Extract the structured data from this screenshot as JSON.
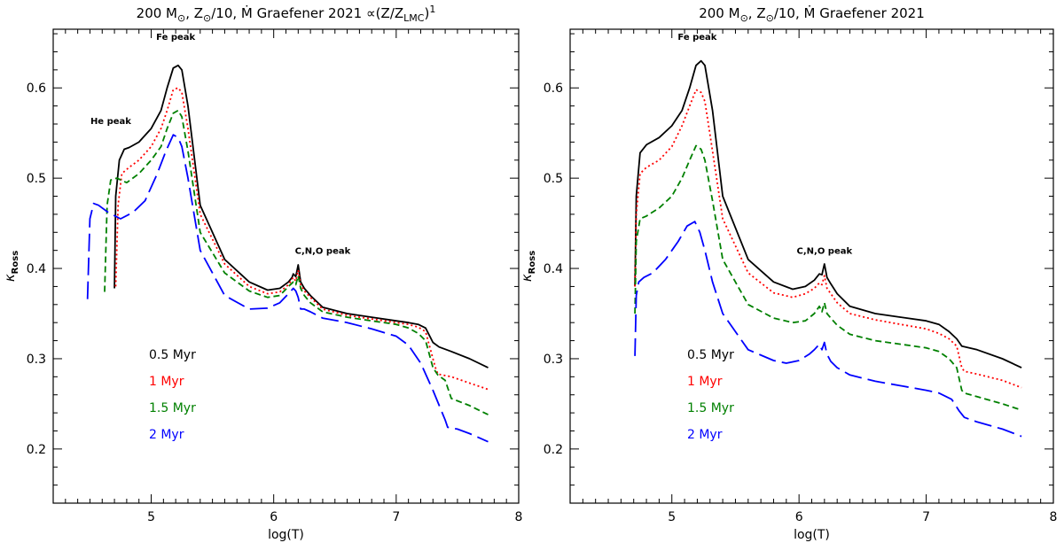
{
  "colors": {
    "black": "#000000",
    "red": "#ff0000",
    "green": "#008000",
    "blue": "#0000ff"
  },
  "chart_data": [
    {
      "type": "line",
      "title": {
        "main": "200 M",
        "sun1": "⊙",
        "mid": ", Z",
        "sun2": "⊙",
        "tail": "/10, Ṁ Graefener 2021 ∝(Z/Z",
        "sub": "LMC",
        "close": ")",
        "sup": "1"
      },
      "xlabel": "log(T)",
      "ylabel": {
        "symbol": "κ",
        "sub": "Ross"
      },
      "xlim": [
        4.2,
        8.0
      ],
      "ylim": [
        0.14,
        0.665
      ],
      "xticks": [
        5,
        6,
        7,
        8
      ],
      "yticks": [
        0.2,
        0.3,
        0.4,
        0.5,
        0.6
      ],
      "annotations": [
        {
          "text": "Fe peak",
          "x": 5.2,
          "y": 0.653
        },
        {
          "text": "He peak",
          "x": 4.67,
          "y": 0.56
        },
        {
          "text": "C,N,O peak",
          "x": 6.4,
          "y": 0.416
        }
      ],
      "legend_position": "bottom-left",
      "series": [
        {
          "name": "0.5 Myr",
          "color": "black",
          "dash": "solid",
          "x": [
            4.7,
            4.71,
            4.74,
            4.78,
            4.82,
            4.9,
            5.0,
            5.08,
            5.13,
            5.18,
            5.22,
            5.25,
            5.3,
            5.4,
            5.6,
            5.8,
            5.95,
            6.05,
            6.12,
            6.15,
            6.16,
            6.18,
            6.2,
            6.22,
            6.25,
            6.3,
            6.4,
            6.6,
            6.8,
            7.0,
            7.1,
            7.18,
            7.24,
            7.3,
            7.35,
            7.45,
            7.6,
            7.75
          ],
          "y": [
            0.378,
            0.48,
            0.52,
            0.532,
            0.534,
            0.54,
            0.555,
            0.575,
            0.6,
            0.622,
            0.625,
            0.62,
            0.58,
            0.47,
            0.41,
            0.385,
            0.376,
            0.378,
            0.385,
            0.39,
            0.394,
            0.391,
            0.404,
            0.385,
            0.378,
            0.37,
            0.357,
            0.35,
            0.346,
            0.342,
            0.34,
            0.338,
            0.334,
            0.318,
            0.313,
            0.308,
            0.3,
            0.29
          ]
        },
        {
          "name": "1 Myr",
          "color": "red",
          "dash": "dotted",
          "x": [
            4.71,
            4.73,
            4.76,
            4.82,
            4.9,
            5.0,
            5.08,
            5.13,
            5.18,
            5.22,
            5.25,
            5.3,
            5.4,
            5.6,
            5.8,
            5.95,
            6.05,
            6.12,
            6.16,
            6.18,
            6.2,
            6.22,
            6.25,
            6.3,
            6.4,
            6.6,
            6.8,
            7.0,
            7.1,
            7.18,
            7.24,
            7.3,
            7.32,
            7.34,
            7.45,
            7.6,
            7.75
          ],
          "y": [
            0.38,
            0.47,
            0.505,
            0.512,
            0.52,
            0.535,
            0.555,
            0.575,
            0.598,
            0.6,
            0.595,
            0.555,
            0.46,
            0.405,
            0.38,
            0.372,
            0.374,
            0.382,
            0.39,
            0.386,
            0.398,
            0.382,
            0.375,
            0.368,
            0.355,
            0.348,
            0.344,
            0.34,
            0.338,
            0.335,
            0.33,
            0.3,
            0.29,
            0.283,
            0.28,
            0.273,
            0.266
          ]
        },
        {
          "name": "1.5 Myr",
          "color": "green",
          "dash": "dashed",
          "x": [
            4.62,
            4.64,
            4.67,
            4.72,
            4.8,
            4.9,
            5.0,
            5.08,
            5.13,
            5.18,
            5.22,
            5.25,
            5.3,
            5.4,
            5.6,
            5.8,
            5.95,
            6.05,
            6.12,
            6.16,
            6.18,
            6.2,
            6.22,
            6.25,
            6.3,
            6.4,
            6.6,
            6.8,
            7.0,
            7.1,
            7.18,
            7.24,
            7.3,
            7.34,
            7.4,
            7.45,
            7.6,
            7.75
          ],
          "y": [
            0.374,
            0.47,
            0.498,
            0.5,
            0.495,
            0.505,
            0.52,
            0.535,
            0.555,
            0.572,
            0.575,
            0.568,
            0.53,
            0.44,
            0.395,
            0.375,
            0.368,
            0.37,
            0.38,
            0.385,
            0.382,
            0.392,
            0.378,
            0.37,
            0.362,
            0.352,
            0.346,
            0.342,
            0.338,
            0.334,
            0.328,
            0.32,
            0.29,
            0.282,
            0.276,
            0.256,
            0.248,
            0.238
          ]
        },
        {
          "name": "2 Myr",
          "color": "blue",
          "dash": "longdash",
          "x": [
            4.48,
            4.5,
            4.53,
            4.57,
            4.65,
            4.75,
            4.85,
            4.95,
            5.05,
            5.12,
            5.18,
            5.22,
            5.25,
            5.3,
            5.4,
            5.6,
            5.8,
            5.95,
            6.05,
            6.12,
            6.16,
            6.18,
            6.2,
            6.22,
            6.25,
            6.3,
            6.4,
            6.6,
            6.8,
            7.0,
            7.1,
            7.2,
            7.3,
            7.4,
            7.42,
            7.5,
            7.6,
            7.75
          ],
          "y": [
            0.366,
            0.455,
            0.472,
            0.47,
            0.462,
            0.455,
            0.462,
            0.475,
            0.505,
            0.53,
            0.548,
            0.545,
            0.535,
            0.5,
            0.42,
            0.37,
            0.355,
            0.356,
            0.362,
            0.372,
            0.378,
            0.375,
            0.368,
            0.355,
            0.355,
            0.352,
            0.345,
            0.34,
            0.333,
            0.325,
            0.315,
            0.295,
            0.265,
            0.232,
            0.224,
            0.222,
            0.217,
            0.208
          ]
        }
      ]
    },
    {
      "type": "line",
      "title": {
        "main": "200 M",
        "sun1": "⊙",
        "mid": ", Z",
        "sun2": "⊙",
        "tail": "/10, Ṁ Graefener 2021"
      },
      "xlabel": "log(T)",
      "ylabel": {
        "symbol": "κ",
        "sub": "Ross"
      },
      "xlim": [
        4.2,
        8.0
      ],
      "ylim": [
        0.14,
        0.665
      ],
      "xticks": [
        5,
        6,
        7,
        8
      ],
      "yticks": [
        0.2,
        0.3,
        0.4,
        0.5,
        0.6
      ],
      "annotations": [
        {
          "text": "Fe peak",
          "x": 5.2,
          "y": 0.653
        },
        {
          "text": "C,N,O peak",
          "x": 6.2,
          "y": 0.416
        }
      ],
      "legend_position": "bottom-left",
      "series": [
        {
          "name": "0.5 Myr",
          "color": "black",
          "dash": "solid",
          "x": [
            4.71,
            4.72,
            4.75,
            4.8,
            4.9,
            5.0,
            5.08,
            5.14,
            5.19,
            5.23,
            5.26,
            5.32,
            5.4,
            5.6,
            5.8,
            5.95,
            6.05,
            6.12,
            6.16,
            6.18,
            6.2,
            6.22,
            6.25,
            6.3,
            6.4,
            6.6,
            6.8,
            7.0,
            7.1,
            7.18,
            7.24,
            7.28,
            7.4,
            7.6,
            7.75
          ],
          "y": [
            0.38,
            0.48,
            0.528,
            0.537,
            0.545,
            0.558,
            0.575,
            0.6,
            0.625,
            0.63,
            0.625,
            0.575,
            0.48,
            0.41,
            0.385,
            0.377,
            0.38,
            0.387,
            0.394,
            0.393,
            0.405,
            0.39,
            0.383,
            0.372,
            0.358,
            0.35,
            0.346,
            0.342,
            0.338,
            0.33,
            0.322,
            0.314,
            0.31,
            0.3,
            0.29
          ]
        },
        {
          "name": "1 Myr",
          "color": "red",
          "dash": "dotted",
          "x": [
            4.71,
            4.72,
            4.75,
            4.8,
            4.9,
            5.0,
            5.08,
            5.14,
            5.19,
            5.23,
            5.26,
            5.32,
            5.4,
            5.6,
            5.8,
            5.95,
            6.05,
            6.12,
            6.16,
            6.18,
            6.2,
            6.22,
            6.25,
            6.3,
            6.4,
            6.6,
            6.8,
            7.0,
            7.1,
            7.18,
            7.24,
            7.28,
            7.3,
            7.4,
            7.6,
            7.75
          ],
          "y": [
            0.38,
            0.46,
            0.505,
            0.512,
            0.52,
            0.535,
            0.558,
            0.58,
            0.598,
            0.595,
            0.585,
            0.53,
            0.455,
            0.395,
            0.373,
            0.368,
            0.372,
            0.378,
            0.384,
            0.382,
            0.392,
            0.378,
            0.372,
            0.362,
            0.35,
            0.343,
            0.338,
            0.333,
            0.328,
            0.322,
            0.314,
            0.29,
            0.286,
            0.283,
            0.276,
            0.268
          ]
        },
        {
          "name": "1.5 Myr",
          "color": "green",
          "dash": "dashed",
          "x": [
            4.71,
            4.72,
            4.75,
            4.8,
            4.9,
            5.0,
            5.08,
            5.14,
            5.19,
            5.23,
            5.26,
            5.32,
            5.4,
            5.6,
            5.8,
            5.95,
            6.05,
            6.12,
            6.16,
            6.18,
            6.2,
            6.22,
            6.25,
            6.3,
            6.4,
            6.6,
            6.8,
            7.0,
            7.1,
            7.18,
            7.24,
            7.28,
            7.3,
            7.4,
            7.6,
            7.75
          ],
          "y": [
            0.35,
            0.43,
            0.455,
            0.458,
            0.467,
            0.48,
            0.5,
            0.52,
            0.536,
            0.532,
            0.52,
            0.475,
            0.41,
            0.36,
            0.345,
            0.34,
            0.342,
            0.35,
            0.358,
            0.352,
            0.362,
            0.35,
            0.345,
            0.337,
            0.327,
            0.32,
            0.316,
            0.312,
            0.308,
            0.3,
            0.29,
            0.265,
            0.262,
            0.258,
            0.25,
            0.243
          ]
        },
        {
          "name": "2 Myr",
          "color": "blue",
          "dash": "longdash",
          "x": [
            4.71,
            4.72,
            4.74,
            4.78,
            4.85,
            4.95,
            5.05,
            5.12,
            5.18,
            5.22,
            5.26,
            5.32,
            5.4,
            5.6,
            5.8,
            5.9,
            6.0,
            6.08,
            6.12,
            6.16,
            6.18,
            6.2,
            6.22,
            6.25,
            6.3,
            6.4,
            6.6,
            6.8,
            7.0,
            7.1,
            7.2,
            7.26,
            7.3,
            7.4,
            7.6,
            7.75
          ],
          "y": [
            0.303,
            0.37,
            0.385,
            0.39,
            0.395,
            0.41,
            0.43,
            0.447,
            0.452,
            0.44,
            0.42,
            0.385,
            0.35,
            0.31,
            0.298,
            0.295,
            0.298,
            0.305,
            0.31,
            0.316,
            0.31,
            0.318,
            0.305,
            0.297,
            0.29,
            0.282,
            0.275,
            0.27,
            0.265,
            0.262,
            0.255,
            0.242,
            0.235,
            0.23,
            0.222,
            0.214
          ]
        }
      ]
    }
  ]
}
